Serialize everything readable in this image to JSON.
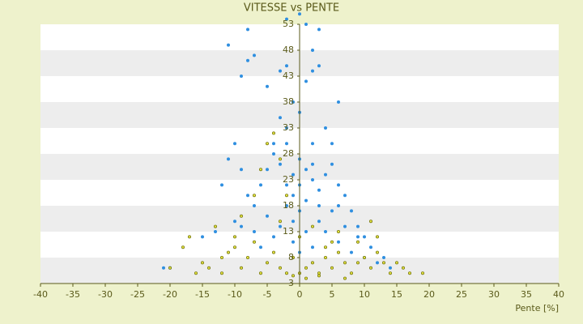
{
  "chart_data": {
    "type": "scatter",
    "title": "VITESSE vs PENTE",
    "x_label": "Pente [%]",
    "xlim": [
      -40,
      40
    ],
    "xticks": [
      -40,
      -35,
      -30,
      -25,
      -20,
      -15,
      -10,
      -5,
      0,
      5,
      10,
      15,
      20,
      25,
      30,
      35,
      40
    ],
    "ylim": [
      3,
      53
    ],
    "yticks": [
      3,
      8,
      13,
      18,
      23,
      28,
      33,
      38,
      43,
      48,
      53
    ],
    "grid": "bands",
    "series": [
      {
        "color": "#2f8fe0",
        "x": [
          -21,
          -20,
          -11,
          -8,
          -7,
          -8,
          -9,
          -5,
          -3,
          -2,
          1,
          2,
          3,
          2,
          3,
          0,
          -2,
          1,
          -1,
          0,
          -3,
          -2,
          -4,
          -10,
          -11,
          -12,
          -9,
          -8,
          -7,
          -6,
          -5,
          -4,
          -3,
          -2,
          -1,
          0,
          1,
          2,
          3,
          4,
          5,
          6,
          7,
          8,
          9,
          10,
          5,
          4,
          2,
          1,
          0,
          -1,
          -2,
          -3,
          -4,
          -6,
          -9,
          -10,
          -13,
          -15,
          3,
          4,
          6,
          7,
          8,
          10,
          12,
          13,
          14,
          11,
          2,
          0,
          -1,
          1,
          3,
          5,
          6,
          -1,
          0,
          2,
          6,
          -2,
          -5,
          -7,
          9
        ],
        "values": [
          6,
          6,
          49,
          52,
          47,
          46,
          43,
          41,
          44,
          45,
          42,
          44,
          45,
          48,
          52,
          55,
          54,
          53,
          38,
          36,
          35,
          33,
          30,
          30,
          27,
          22,
          25,
          20,
          18,
          22,
          25,
          28,
          26,
          22,
          24,
          27,
          25,
          23,
          21,
          24,
          26,
          22,
          20,
          17,
          14,
          12,
          30,
          33,
          30,
          19,
          17,
          15,
          18,
          14,
          12,
          10,
          14,
          15,
          13,
          12,
          15,
          13,
          11,
          14,
          9,
          8,
          7,
          8,
          6,
          10,
          10,
          9,
          11,
          13,
          18,
          17,
          18,
          20,
          22,
          26,
          38,
          30,
          16,
          13,
          12
        ]
      },
      {
        "color": "#7a7a10",
        "x": [
          -20,
          -18,
          -17,
          -16,
          -15,
          -13,
          -12,
          -11,
          -10,
          -9,
          -8,
          -7,
          -6,
          -5,
          -4,
          -3,
          -2,
          -1,
          0,
          1,
          2,
          3,
          4,
          5,
          6,
          7,
          8,
          9,
          10,
          11,
          12,
          13,
          14,
          15,
          16,
          17,
          19,
          12,
          11,
          -5,
          -4,
          -3,
          -6,
          -2,
          -7,
          -3,
          0,
          2,
          4,
          6,
          -9,
          -10,
          -1,
          1,
          3,
          7,
          -12,
          9,
          5,
          -14
        ],
        "values": [
          6,
          10,
          12,
          5,
          7,
          14,
          5,
          9,
          12,
          6,
          8,
          11,
          5,
          7,
          9,
          6,
          5,
          8,
          5,
          6,
          7,
          5,
          8,
          6,
          9,
          7,
          5,
          11,
          8,
          6,
          9,
          7,
          5,
          7,
          6,
          5,
          5,
          12,
          15,
          30,
          32,
          27,
          25,
          20,
          20,
          15,
          12,
          14,
          10,
          13,
          16,
          10,
          4.5,
          4,
          4.5,
          4,
          8,
          7,
          11,
          6
        ]
      }
    ]
  }
}
